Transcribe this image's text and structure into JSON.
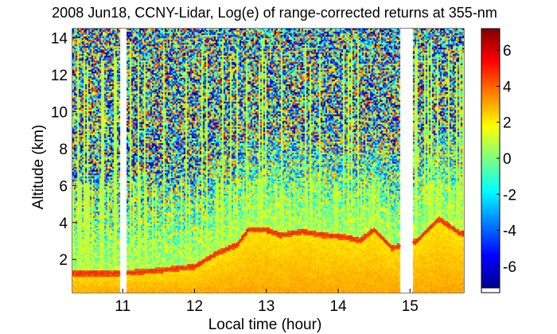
{
  "chart_data": {
    "type": "heatmap",
    "title": "2008 Jun18, CCNY-Lidar, Log(e) of range-corrected returns at 355-nm",
    "xlabel": "Local time (hour)",
    "ylabel": "Altitude (km)",
    "xlim": [
      10.3,
      15.75
    ],
    "ylim": [
      0.2,
      14.5
    ],
    "xticks": [
      11,
      12,
      13,
      14,
      15
    ],
    "xtick_labels": [
      "11",
      "12",
      "13",
      "14",
      "15"
    ],
    "yticks": [
      2,
      4,
      6,
      8,
      10,
      12,
      14
    ],
    "ytick_labels": [
      "2",
      "4",
      "6",
      "8",
      "10",
      "12",
      "14"
    ],
    "colorbar": {
      "range": [
        -7.2,
        7.2
      ],
      "ticks": [
        6,
        4,
        2,
        0,
        -2,
        -4,
        -6
      ],
      "tick_labels": [
        "6",
        "4",
        "2",
        "0",
        "-2",
        "-4",
        "-6"
      ],
      "colormap": "jet"
    },
    "data_gaps_hour": [
      [
        10.97,
        11.05
      ],
      [
        14.87,
        15.03
      ]
    ],
    "boundary_layer_top_km": [
      [
        10.35,
        1.25
      ],
      [
        11.0,
        1.25
      ],
      [
        11.5,
        1.4
      ],
      [
        12.0,
        1.6
      ],
      [
        12.3,
        2.3
      ],
      [
        12.6,
        2.8
      ],
      [
        12.75,
        3.6
      ],
      [
        13.0,
        3.6
      ],
      [
        13.2,
        3.3
      ],
      [
        13.5,
        3.5
      ],
      [
        13.8,
        3.3
      ],
      [
        14.1,
        3.2
      ],
      [
        14.3,
        3.0
      ],
      [
        14.5,
        3.6
      ],
      [
        14.75,
        2.6
      ],
      [
        15.1,
        3.0
      ],
      [
        15.4,
        4.2
      ],
      [
        15.7,
        3.4
      ]
    ]
  }
}
